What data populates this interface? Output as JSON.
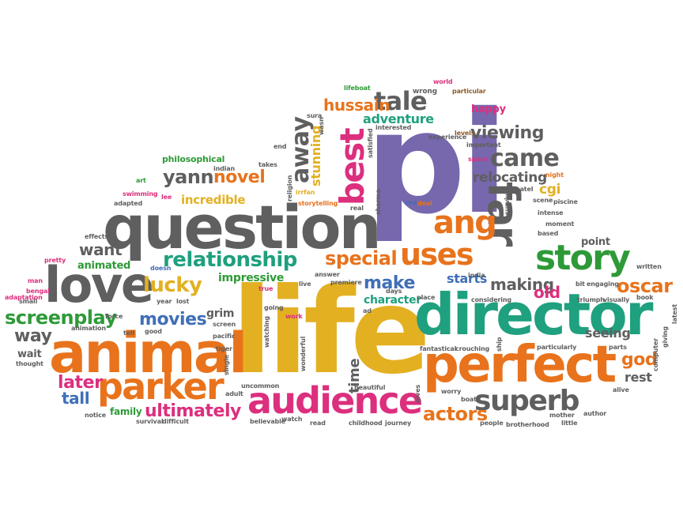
{
  "colors": {
    "orange": "#E8731C",
    "gray": "#5F5F5F",
    "green": "#2E9A37",
    "yellow": "#E3B022",
    "purple": "#7767AD",
    "magenta": "#DC2F7E",
    "teal": "#1FA07F",
    "blue": "#3F6FB7",
    "brown": "#8C5A2A"
  },
  "words": [
    {
      "text": "pi",
      "color": "purple"
    },
    {
      "text": "life",
      "color": "yellow"
    },
    {
      "text": "question",
      "color": "gray"
    },
    {
      "text": "director",
      "color": "teal"
    },
    {
      "text": "animal",
      "color": "orange"
    },
    {
      "text": "perfect",
      "color": "orange"
    },
    {
      "text": "love",
      "color": "gray"
    },
    {
      "text": "far",
      "color": "gray"
    },
    {
      "text": "audience",
      "color": "magenta"
    },
    {
      "text": "parker",
      "color": "orange"
    },
    {
      "text": "story",
      "color": "green"
    },
    {
      "text": "best",
      "color": "magenta"
    },
    {
      "text": "ang",
      "color": "orange"
    },
    {
      "text": "uses",
      "color": "orange"
    },
    {
      "text": "superb",
      "color": "gray"
    },
    {
      "text": "relationship",
      "color": "teal"
    },
    {
      "text": "screenplay",
      "color": "green"
    },
    {
      "text": "came",
      "color": "gray"
    },
    {
      "text": "away",
      "color": "gray"
    },
    {
      "text": "tale",
      "color": "gray"
    },
    {
      "text": "special",
      "color": "orange"
    },
    {
      "text": "lucky",
      "color": "yellow"
    },
    {
      "text": "ultimately",
      "color": "magenta"
    },
    {
      "text": "yann",
      "color": "gray"
    },
    {
      "text": "novel",
      "color": "orange"
    },
    {
      "text": "movies",
      "color": "blue"
    },
    {
      "text": "actors",
      "color": "orange"
    },
    {
      "text": "viewing",
      "color": "gray"
    },
    {
      "text": "oscar",
      "color": "orange"
    },
    {
      "text": "make",
      "color": "blue"
    },
    {
      "text": "starts",
      "color": "blue"
    },
    {
      "text": "making",
      "color": "gray"
    },
    {
      "text": "old",
      "color": "magenta"
    },
    {
      "text": "god",
      "color": "orange"
    },
    {
      "text": "later",
      "color": "magenta"
    },
    {
      "text": "tall",
      "color": "blue"
    },
    {
      "text": "way",
      "color": "gray"
    },
    {
      "text": "want",
      "color": "gray"
    },
    {
      "text": "hussain",
      "color": "orange"
    },
    {
      "text": "impressive",
      "color": "green"
    },
    {
      "text": "incredible",
      "color": "yellow"
    },
    {
      "text": "relocating",
      "color": "gray"
    },
    {
      "text": "cgi",
      "color": "yellow"
    },
    {
      "text": "adventure",
      "color": "teal"
    },
    {
      "text": "animated",
      "color": "green"
    },
    {
      "text": "character",
      "color": "teal"
    },
    {
      "text": "time",
      "color": "gray"
    },
    {
      "text": "seeing",
      "color": "gray"
    },
    {
      "text": "rest",
      "color": "gray"
    },
    {
      "text": "stunning",
      "color": "yellow"
    },
    {
      "text": "grim",
      "color": "gray"
    },
    {
      "text": "wait",
      "color": "gray"
    },
    {
      "text": "family",
      "color": "green"
    },
    {
      "text": "happy",
      "color": "magenta"
    },
    {
      "text": "philosophical",
      "color": "green"
    },
    {
      "text": "point",
      "color": "gray"
    },
    {
      "text": "wrong",
      "color": "gray"
    },
    {
      "text": "lifeboat",
      "color": "green"
    },
    {
      "text": "world",
      "color": "magenta"
    },
    {
      "text": "particular",
      "color": "brown"
    },
    {
      "text": "sura",
      "color": "gray"
    },
    {
      "text": "interested",
      "color": "gray"
    },
    {
      "text": "levels",
      "color": "brown"
    },
    {
      "text": "satisfied",
      "color": "gray"
    },
    {
      "text": "experience",
      "color": "gray"
    },
    {
      "text": "important",
      "color": "gray"
    },
    {
      "text": "space",
      "color": "magenta"
    },
    {
      "text": "end",
      "color": "gray"
    },
    {
      "text": "takes",
      "color": "gray"
    },
    {
      "text": "indian",
      "color": "gray"
    },
    {
      "text": "art",
      "color": "green"
    },
    {
      "text": "swimming",
      "color": "magenta"
    },
    {
      "text": "lee",
      "color": "magenta"
    },
    {
      "text": "adapted",
      "color": "gray"
    },
    {
      "text": "religion",
      "color": "gray"
    },
    {
      "text": "irrfan",
      "color": "yellow"
    },
    {
      "text": "storytelling",
      "color": "orange"
    },
    {
      "text": "real",
      "color": "gray"
    },
    {
      "text": "sea",
      "color": "blue"
    },
    {
      "text": "deal",
      "color": "orange"
    },
    {
      "text": "patel",
      "color": "gray"
    },
    {
      "text": "night",
      "color": "orange"
    },
    {
      "text": "scene",
      "color": "gray"
    },
    {
      "text": "survive",
      "color": "gray"
    },
    {
      "text": "intense",
      "color": "gray"
    },
    {
      "text": "moment",
      "color": "gray"
    },
    {
      "text": "based",
      "color": "gray"
    },
    {
      "text": "piscine",
      "color": "gray"
    },
    {
      "text": "effects",
      "color": "gray"
    },
    {
      "text": "bengal",
      "color": "magenta"
    },
    {
      "text": "small",
      "color": "gray"
    },
    {
      "text": "pretty",
      "color": "magenta"
    },
    {
      "text": "doesn",
      "color": "blue"
    },
    {
      "text": "man",
      "color": "magenta"
    },
    {
      "text": "adaptation",
      "color": "magenta"
    },
    {
      "text": "year",
      "color": "gray"
    },
    {
      "text": "lost",
      "color": "gray"
    },
    {
      "text": "true",
      "color": "magenta"
    },
    {
      "text": "live",
      "color": "gray"
    },
    {
      "text": "answer",
      "color": "gray"
    },
    {
      "text": "premiere",
      "color": "gray"
    },
    {
      "text": "india",
      "color": "gray"
    },
    {
      "text": "place",
      "color": "gray"
    },
    {
      "text": "considering",
      "color": "gray"
    },
    {
      "text": "bit",
      "color": "gray"
    },
    {
      "text": "engaging",
      "color": "gray"
    },
    {
      "text": "triumph",
      "color": "gray"
    },
    {
      "text": "visually",
      "color": "gray"
    },
    {
      "text": "written",
      "color": "gray"
    },
    {
      "text": "book",
      "color": "gray"
    },
    {
      "text": "latest",
      "color": "gray"
    },
    {
      "text": "giving",
      "color": "gray"
    },
    {
      "text": "computer",
      "color": "gray"
    },
    {
      "text": "parts",
      "color": "gray"
    },
    {
      "text": "alive",
      "color": "gray"
    },
    {
      "text": "force",
      "color": "gray"
    },
    {
      "text": "animation",
      "color": "gray"
    },
    {
      "text": "good",
      "color": "gray"
    },
    {
      "text": "tell",
      "color": "gray"
    },
    {
      "text": "screen",
      "color": "gray"
    },
    {
      "text": "work",
      "color": "magenta"
    },
    {
      "text": "ad",
      "color": "gray"
    },
    {
      "text": "pacific",
      "color": "gray"
    },
    {
      "text": "tiger",
      "color": "gray"
    },
    {
      "text": "watching",
      "color": "gray"
    },
    {
      "text": "single",
      "color": "gray"
    },
    {
      "text": "wonderful",
      "color": "gray"
    },
    {
      "text": "fantastical",
      "color": "gray"
    },
    {
      "text": "crouching",
      "color": "gray"
    },
    {
      "text": "ship",
      "color": "gray"
    },
    {
      "text": "particularly",
      "color": "gray"
    },
    {
      "text": "thought",
      "color": "gray"
    },
    {
      "text": "uncommon",
      "color": "gray"
    },
    {
      "text": "adult",
      "color": "gray"
    },
    {
      "text": "beautiful",
      "color": "gray"
    },
    {
      "text": "gives",
      "color": "gray"
    },
    {
      "text": "worry",
      "color": "gray"
    },
    {
      "text": "boat",
      "color": "gray"
    },
    {
      "text": "notice",
      "color": "gray"
    },
    {
      "text": "survival",
      "color": "gray"
    },
    {
      "text": "difficult",
      "color": "gray"
    },
    {
      "text": "believable",
      "color": "gray"
    },
    {
      "text": "watch",
      "color": "gray"
    },
    {
      "text": "read",
      "color": "gray"
    },
    {
      "text": "childhood",
      "color": "gray"
    },
    {
      "text": "journey",
      "color": "gray"
    },
    {
      "text": "people",
      "color": "gray"
    },
    {
      "text": "brotherhood",
      "color": "gray"
    },
    {
      "text": "mother",
      "color": "gray"
    },
    {
      "text": "author",
      "color": "gray"
    },
    {
      "text": "little",
      "color": "gray"
    },
    {
      "text": "days",
      "color": "gray"
    },
    {
      "text": "sharma",
      "color": "gray"
    },
    {
      "text": "wasn",
      "color": "gray"
    },
    {
      "text": "going",
      "color": "gray"
    }
  ]
}
